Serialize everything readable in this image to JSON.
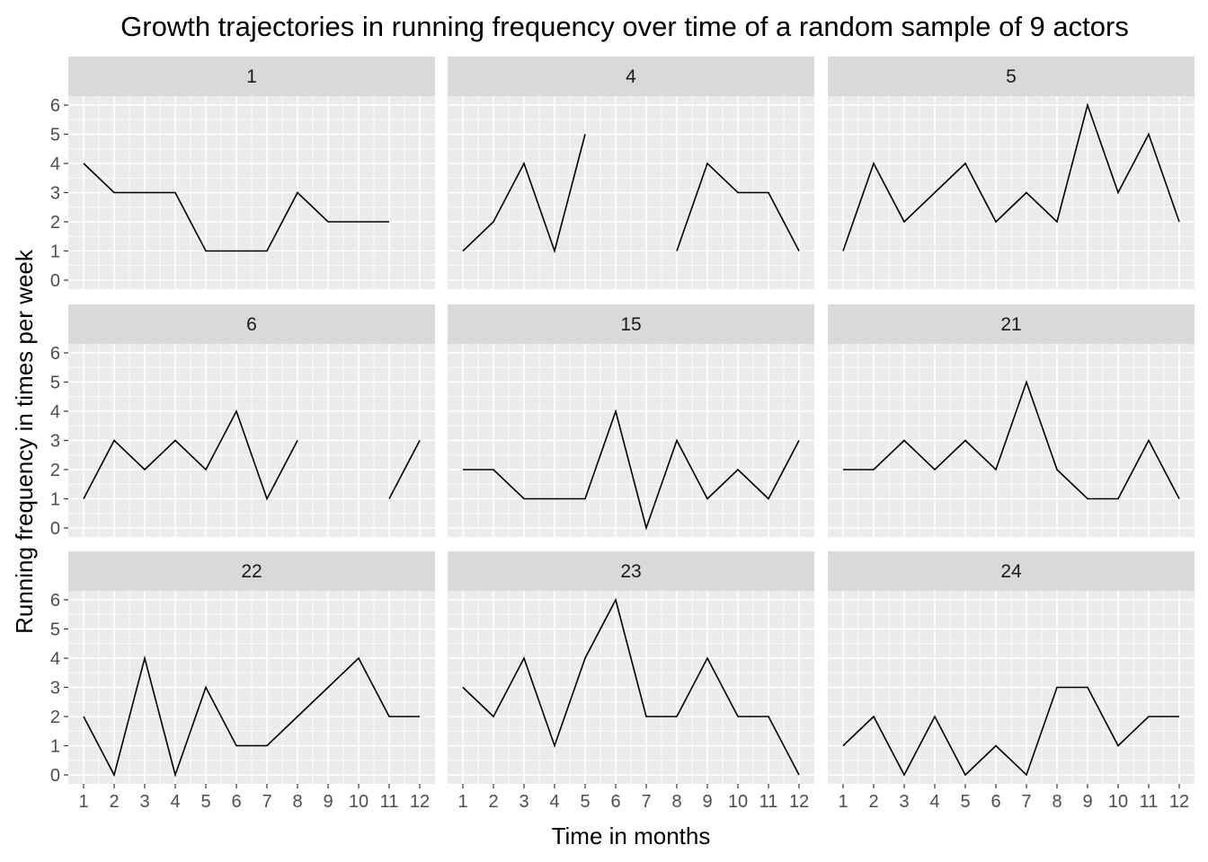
{
  "chart_data": {
    "type": "line",
    "title": "Growth trajectories in running frequency over time of a random sample of 9 actors",
    "xlabel": "Time in months",
    "ylabel": "Running frequency in times per week",
    "x": [
      1,
      2,
      3,
      4,
      5,
      6,
      7,
      8,
      9,
      10,
      11,
      12
    ],
    "xlim": [
      1,
      12
    ],
    "ylim": [
      0,
      6
    ],
    "y_ticks": [
      0,
      1,
      2,
      3,
      4,
      5,
      6
    ],
    "grid": true,
    "legend": "none",
    "line_color": "#000000",
    "panel_background": "#ebebeb",
    "strip_background": "#d9d9d9",
    "facets": [
      {
        "label": "1",
        "values": [
          4,
          3,
          3,
          3,
          1,
          1,
          1,
          3,
          2,
          2,
          2,
          null
        ]
      },
      {
        "label": "4",
        "values": [
          1,
          2,
          4,
          1,
          5,
          null,
          null,
          1,
          4,
          3,
          3,
          1
        ]
      },
      {
        "label": "5",
        "values": [
          1,
          4,
          2,
          3,
          4,
          2,
          3,
          2,
          6,
          3,
          5,
          2
        ]
      },
      {
        "label": "6",
        "values": [
          1,
          3,
          2,
          3,
          2,
          4,
          1,
          3,
          null,
          null,
          1,
          3
        ]
      },
      {
        "label": "15",
        "values": [
          2,
          2,
          1,
          1,
          1,
          4,
          0,
          3,
          1,
          2,
          1,
          3
        ]
      },
      {
        "label": "21",
        "values": [
          2,
          2,
          3,
          2,
          3,
          2,
          5,
          2,
          1,
          1,
          3,
          1
        ]
      },
      {
        "label": "22",
        "values": [
          2,
          0,
          4,
          0,
          3,
          1,
          1,
          2,
          3,
          4,
          2,
          2
        ]
      },
      {
        "label": "23",
        "values": [
          3,
          2,
          4,
          1,
          4,
          6,
          2,
          2,
          4,
          2,
          2,
          0
        ]
      },
      {
        "label": "24",
        "values": [
          1,
          2,
          0,
          2,
          0,
          1,
          0,
          3,
          3,
          1,
          2,
          2
        ]
      }
    ]
  }
}
